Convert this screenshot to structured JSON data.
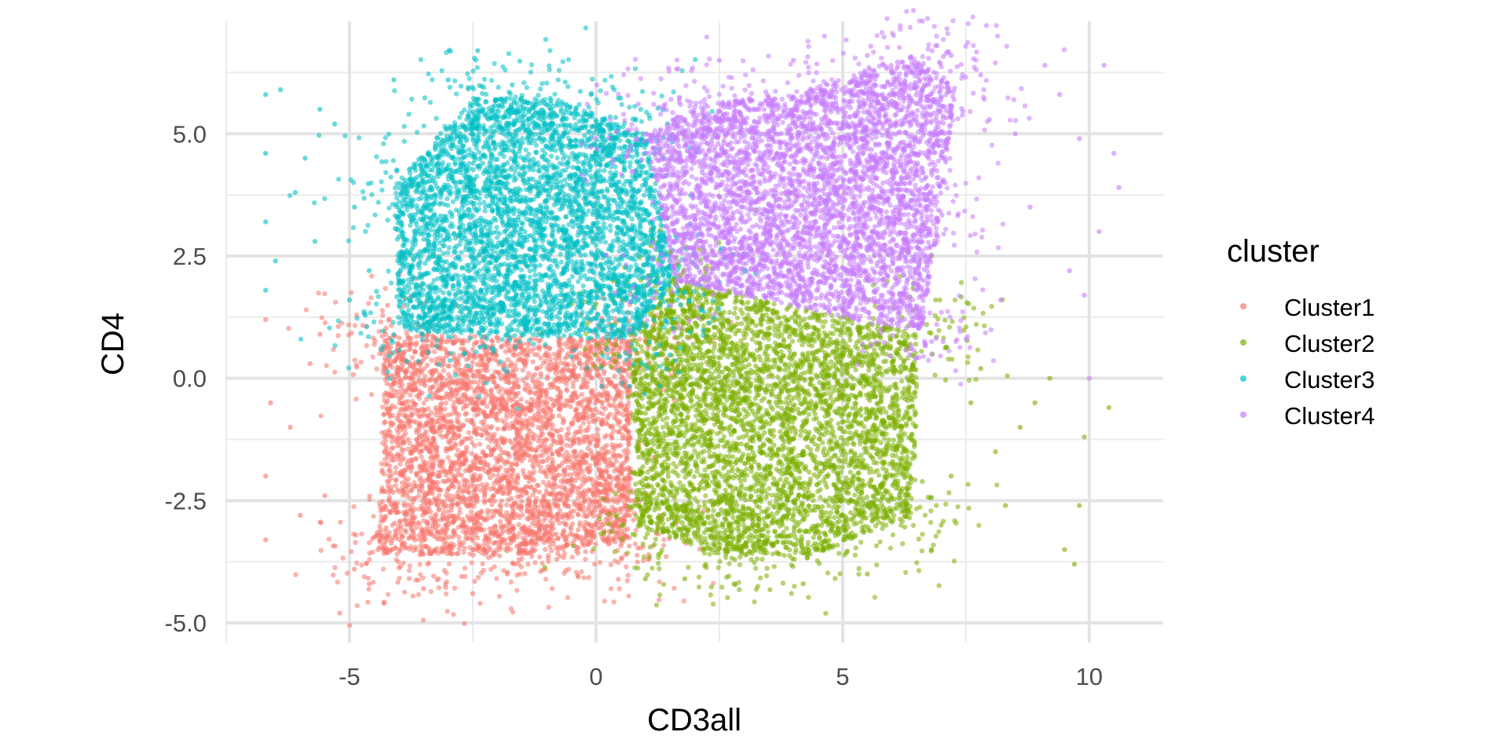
{
  "chart_data": {
    "type": "scatter",
    "xlabel": "CD3all",
    "ylabel": "CD4",
    "xlim": [
      -7.5,
      11.5
    ],
    "ylim": [
      -5.4,
      7.3
    ],
    "x_ticks": [
      -5,
      0,
      5,
      10
    ],
    "x_tick_labels": [
      "-5",
      "0",
      "5",
      "10"
    ],
    "y_ticks": [
      -5.0,
      -2.5,
      0.0,
      2.5,
      5.0
    ],
    "y_tick_labels": [
      "-5.0",
      "-2.5",
      "0.0",
      "2.5",
      "5.0"
    ],
    "grid": true,
    "legend": {
      "title": "cluster",
      "placement": "right",
      "entries": [
        "Cluster1",
        "Cluster2",
        "Cluster3",
        "Cluster4"
      ]
    },
    "series": [
      {
        "name": "Cluster1",
        "color": "#F8766D",
        "dense_region": {
          "x": [
            -4.4,
            0.7
          ],
          "y": [
            -3.6,
            0.9
          ]
        },
        "sample_points": [
          [
            -6.7,
            1.2
          ],
          [
            -6.6,
            -0.5
          ],
          [
            -6.7,
            -2.0
          ],
          [
            -6.2,
            -1.0
          ],
          [
            -5.8,
            0.3
          ],
          [
            -5.5,
            -2.4
          ],
          [
            -5.2,
            -4.8
          ],
          [
            -4.9,
            -3.9
          ],
          [
            -4.6,
            -4.2
          ],
          [
            -4.3,
            -4.6
          ],
          [
            -3.5,
            -4.3
          ],
          [
            -2.5,
            -4.4
          ],
          [
            -1.8,
            -4.0
          ],
          [
            -0.8,
            -3.7
          ],
          [
            0.2,
            -3.3
          ],
          [
            0.6,
            -3.6
          ],
          [
            0.5,
            -2.9
          ],
          [
            -6.7,
            -3.3
          ],
          [
            -6.0,
            -2.8
          ],
          [
            -5.6,
            0.9
          ]
        ]
      },
      {
        "name": "Cluster2",
        "color": "#7CAE00",
        "dense_region": {
          "x": [
            0.6,
            6.5
          ],
          "y": [
            -3.6,
            2.0
          ]
        },
        "sample_points": [
          [
            1.0,
            -4.1
          ],
          [
            1.8,
            -4.1
          ],
          [
            2.8,
            -4.2
          ],
          [
            4.2,
            -4.2
          ],
          [
            5.5,
            -4.0
          ],
          [
            6.8,
            -3.5
          ],
          [
            7.2,
            -2.0
          ],
          [
            7.8,
            0.2
          ],
          [
            8.1,
            -1.5
          ],
          [
            8.6,
            -1.0
          ],
          [
            8.9,
            -0.5
          ],
          [
            9.2,
            0.0
          ],
          [
            9.5,
            -3.5
          ],
          [
            9.7,
            -3.8
          ],
          [
            9.9,
            -1.2
          ],
          [
            10.4,
            -0.6
          ],
          [
            9.8,
            -2.6
          ],
          [
            7.0,
            -3.0
          ],
          [
            8.3,
            -2.6
          ],
          [
            7.6,
            -0.5
          ]
        ]
      },
      {
        "name": "Cluster3",
        "color": "#00BFC4",
        "dense_region": {
          "x": [
            -4.2,
            1.6
          ],
          "y": [
            0.8,
            5.8
          ]
        },
        "sample_points": [
          [
            -6.7,
            5.8
          ],
          [
            -6.7,
            4.6
          ],
          [
            -6.7,
            3.2
          ],
          [
            -6.7,
            1.8
          ],
          [
            -6.4,
            5.9
          ],
          [
            -6.1,
            3.8
          ],
          [
            -5.7,
            2.8
          ],
          [
            -5.3,
            5.2
          ],
          [
            -5.0,
            1.6
          ],
          [
            -4.9,
            3.5
          ],
          [
            -4.6,
            2.2
          ],
          [
            -4.1,
            6.1
          ],
          [
            -3.0,
            6.1
          ],
          [
            -2.4,
            6.7
          ],
          [
            -1.7,
            6.0
          ],
          [
            -0.1,
            5.8
          ],
          [
            0.8,
            5.3
          ],
          [
            -5.6,
            5.5
          ],
          [
            -6.5,
            2.4
          ],
          [
            -5.9,
            4.5
          ]
        ]
      },
      {
        "name": "Cluster4",
        "color": "#C77CFF",
        "dense_region": {
          "x": [
            1.0,
            7.3
          ],
          "y": [
            1.0,
            6.6
          ]
        },
        "sample_points": [
          [
            1.4,
            5.6
          ],
          [
            2.5,
            6.5
          ],
          [
            4.0,
            6.5
          ],
          [
            5.5,
            6.6
          ],
          [
            7.2,
            6.6
          ],
          [
            7.8,
            6.2
          ],
          [
            8.5,
            5.0
          ],
          [
            8.8,
            3.5
          ],
          [
            9.1,
            6.4
          ],
          [
            9.4,
            5.8
          ],
          [
            9.6,
            2.2
          ],
          [
            9.9,
            1.7
          ],
          [
            10.2,
            3.0
          ],
          [
            10.3,
            6.4
          ],
          [
            10.5,
            4.6
          ],
          [
            10.6,
            3.9
          ],
          [
            10.0,
            0.0
          ],
          [
            8.2,
            1.6
          ],
          [
            7.5,
            0.8
          ],
          [
            9.8,
            4.9
          ]
        ]
      }
    ]
  }
}
